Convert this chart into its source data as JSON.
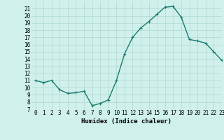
{
  "x": [
    0,
    1,
    2,
    3,
    4,
    5,
    6,
    7,
    8,
    9,
    10,
    11,
    12,
    13,
    14,
    15,
    16,
    17,
    18,
    19,
    20,
    21,
    22,
    23
  ],
  "y": [
    11,
    10.7,
    11,
    9.7,
    9.2,
    9.3,
    9.5,
    7.5,
    7.8,
    8.3,
    11,
    14.7,
    17,
    18.3,
    19.2,
    20.2,
    21.2,
    21.3,
    19.8,
    16.7,
    16.5,
    16.2,
    15,
    13.8
  ],
  "line_color": "#1a7a6e",
  "marker": "+",
  "marker_size": 3,
  "bg_color": "#cff0eb",
  "grid_color": "#b0d8d2",
  "xlabel": "Humidex (Indice chaleur)",
  "ylim": [
    7,
    22
  ],
  "xlim": [
    -0.5,
    23
  ],
  "yticks": [
    7,
    8,
    9,
    10,
    11,
    12,
    13,
    14,
    15,
    16,
    17,
    18,
    19,
    20,
    21
  ],
  "xticks": [
    0,
    1,
    2,
    3,
    4,
    5,
    6,
    7,
    8,
    9,
    10,
    11,
    12,
    13,
    14,
    15,
    16,
    17,
    18,
    19,
    20,
    21,
    22,
    23
  ],
  "tick_labelsize": 5.5,
  "xlabel_fontsize": 6.5,
  "line_width": 1.0,
  "marker_edge_width": 0.8
}
